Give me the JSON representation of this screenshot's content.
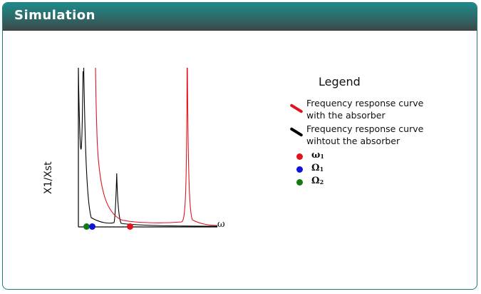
{
  "panel": {
    "title": "Simulation"
  },
  "colors": {
    "header_top": "#1c8a8a",
    "header_bottom": "#3d4a4a",
    "with_absorber": "#e0141e",
    "without_absorber": "#000000",
    "omega1": "#e0141e",
    "Omega1": "#1010e0",
    "Omega2": "#117a11"
  },
  "chart_data": {
    "type": "line",
    "xlabel": "ω",
    "ylabel": "X1/Xst",
    "grid": false,
    "legend_position": "right",
    "series": [
      {
        "name": "Frequency response curve with the absorber",
        "color": "#e0141e",
        "peaks_at_frequency_axis_markers": [
          "near Ω₁ region",
          "far right"
        ]
      },
      {
        "name": "Frequency response curve wihtout the absorber",
        "color": "#000000",
        "peaks_at_frequency_axis_markers": [
          "near left",
          "between Ω₁ and ω₁"
        ]
      }
    ],
    "markers": [
      {
        "label": "ω₁",
        "color": "#e0141e"
      },
      {
        "label": "Ω₁",
        "color": "#1010e0"
      },
      {
        "label": "Ω₂",
        "color": "#117a11"
      }
    ]
  },
  "legend": {
    "title": "Legend",
    "with_absorber": "Frequency response curve\nwith the absorber",
    "without_absorber": "Frequency response curve\nwihtout the absorber",
    "omega1": {
      "main": "ω",
      "sub": "1"
    },
    "Omega1": {
      "main": "Ω",
      "sub": "1"
    },
    "Omega2": {
      "main": "Ω",
      "sub": "2"
    }
  }
}
